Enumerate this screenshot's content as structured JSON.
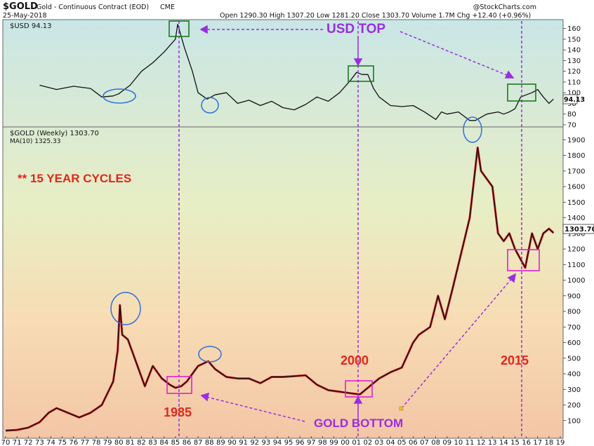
{
  "header": {
    "symbol": "$GOLD",
    "description": "Gold - Continuous Contract (EOD)",
    "exchange": "CME",
    "date": "25-May-2018",
    "stats": "Open 1290.30  High 1307.20  Low 1281.20  Close 1303.70  Volume 1.7M  Chg +12.40 (+0.96%)",
    "watermark": "@StockCharts.com"
  },
  "chart_data": [
    {
      "type": "line",
      "panel": "top",
      "legend_label": "$USD 94.13",
      "last_value_label": "94.13",
      "ylim": [
        68,
        167
      ],
      "y_ticks": [
        70,
        80,
        90,
        100,
        110,
        120,
        130,
        140,
        150,
        160
      ],
      "series": [
        {
          "name": "$USD",
          "color": "#111111",
          "x": [
            1973.0,
            1974.5,
            1976.0,
            1977.5,
            1978.5,
            1979.5,
            1980.0,
            1981.0,
            1982.0,
            1983.0,
            1984.0,
            1985.0,
            1985.2,
            1985.8,
            1986.5,
            1987.0,
            1987.8,
            1988.5,
            1989.5,
            1990.5,
            1991.5,
            1992.5,
            1993.5,
            1994.5,
            1995.5,
            1996.5,
            1997.5,
            1998.5,
            1999.5,
            2000.5,
            2001.0,
            2001.5,
            2002.0,
            2002.5,
            2003.0,
            2004.0,
            2005.0,
            2006.0,
            2007.0,
            2008.0,
            2008.5,
            2009.0,
            2010.0,
            2011.0,
            2011.5,
            2012.5,
            2013.5,
            2014.0,
            2014.5,
            2015.0,
            2015.5,
            2016.0,
            2016.5,
            2017.0,
            2017.5,
            2018.0,
            2018.4
          ],
          "values": [
            107,
            103,
            106,
            104,
            96,
            97,
            99,
            107,
            120,
            128,
            138,
            150,
            164,
            142,
            120,
            100,
            94,
            98,
            100,
            90,
            93,
            88,
            92,
            86,
            84,
            89,
            96,
            92,
            100,
            112,
            119,
            117,
            117,
            104,
            96,
            88,
            87,
            88,
            82,
            75,
            82,
            80,
            82,
            74,
            74,
            80,
            82,
            80,
            82,
            85,
            96,
            98,
            100,
            103,
            96,
            90,
            94
          ]
        }
      ]
    },
    {
      "type": "line",
      "panel": "bottom",
      "legend_label": "$GOLD (Weekly) 1303.70",
      "ma_label": "MA(10) 1325.33",
      "last_value_label": "1303.70",
      "ylim": [
        0,
        1960
      ],
      "y_ticks": [
        100,
        200,
        300,
        400,
        500,
        600,
        700,
        800,
        900,
        1000,
        1100,
        1200,
        1300,
        1400,
        1500,
        1600,
        1700,
        1800,
        1900
      ],
      "x_label_first": 1970,
      "x_label_last": 2019,
      "series": [
        {
          "name": "$GOLD",
          "color": "#111111",
          "x": [
            1970.0,
            1971.0,
            1972.0,
            1973.0,
            1973.8,
            1974.5,
            1975.5,
            1976.5,
            1977.5,
            1978.5,
            1979.5,
            1979.9,
            1980.1,
            1980.3,
            1980.8,
            1981.5,
            1982.3,
            1983.0,
            1983.8,
            1984.5,
            1985.0,
            1985.5,
            1986.0,
            1987.0,
            1987.9,
            1988.5,
            1989.5,
            1990.5,
            1991.5,
            1992.5,
            1993.5,
            1994.5,
            1995.5,
            1996.5,
            1997.5,
            1998.5,
            1999.5,
            2000.5,
            2001.3,
            2002.0,
            2003.0,
            2004.0,
            2005.0,
            2006.0,
            2006.5,
            2007.5,
            2008.2,
            2008.8,
            2009.5,
            2010.5,
            2011.0,
            2011.7,
            2012.0,
            2012.5,
            2013.0,
            2013.5,
            2014.0,
            2014.5,
            2015.0,
            2015.9,
            2016.5,
            2017.0,
            2017.5,
            2018.0,
            2018.4
          ],
          "values": [
            36,
            40,
            55,
            90,
            150,
            180,
            150,
            120,
            150,
            200,
            350,
            550,
            840,
            650,
            620,
            480,
            320,
            450,
            370,
            330,
            310,
            320,
            350,
            450,
            480,
            430,
            380,
            370,
            370,
            340,
            380,
            380,
            385,
            390,
            330,
            295,
            285,
            275,
            268,
            310,
            370,
            410,
            440,
            600,
            650,
            700,
            900,
            750,
            950,
            1250,
            1400,
            1850,
            1700,
            1650,
            1600,
            1300,
            1250,
            1300,
            1200,
            1080,
            1300,
            1200,
            1300,
            1330,
            1303
          ]
        }
      ]
    }
  ],
  "annotations": {
    "usd_top": "USD TOP",
    "gold_bottom": "GOLD BOTTOM",
    "cycles": "** 15 YEAR CYCLES",
    "y1985": "1985",
    "y2000": "2000",
    "y2015": "2015"
  },
  "colors": {
    "purple": "#9b2de0",
    "red_text": "#e2261c",
    "magenta_box": "#e020d0",
    "green_box": "#1a7a1a",
    "blue_circle": "#2f6fd6",
    "gold_red": "#d62020"
  }
}
